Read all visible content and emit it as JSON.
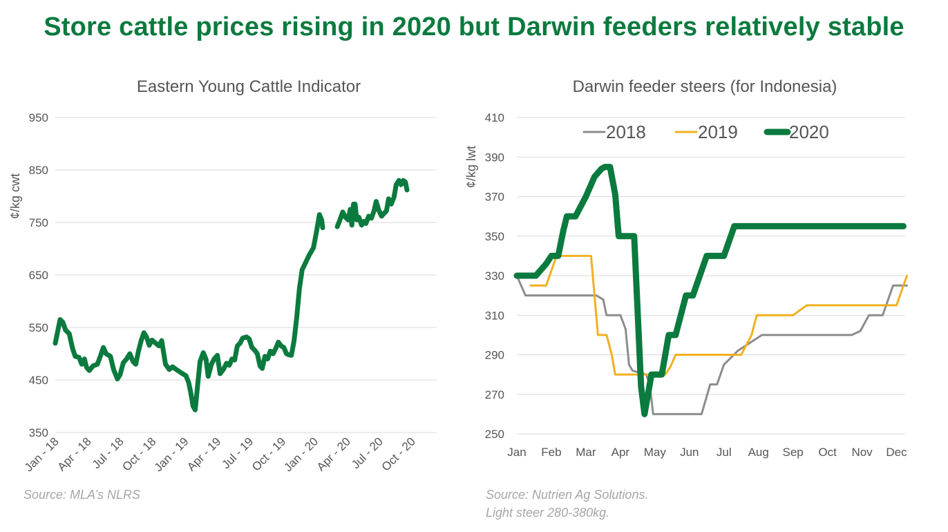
{
  "title": "Store cattle prices rising in 2020 but Darwin feeders relatively stable",
  "chart_data": [
    {
      "type": "line",
      "title": "Eastern Young Cattle Indicator",
      "ylabel": "¢/kg cwt",
      "ylim": [
        350,
        950
      ],
      "yticks": [
        "350",
        "450",
        "550",
        "650",
        "750",
        "850",
        "950"
      ],
      "xticks": [
        "Jan - 18",
        "Apr - 18",
        "Jul - 18",
        "Oct - 18",
        "Jan - 19",
        "Apr - 19",
        "Jul - 19",
        "Oct - 19",
        "Jan - 20",
        "Apr - 20",
        "Jul - 20",
        "Oct - 20"
      ],
      "xlim": [
        0,
        35.3
      ],
      "color": "#0b7a3e",
      "source": "Source: MLA’s NLRS",
      "series": [
        {
          "segments": [
            [
              [
                0,
                520
              ],
              [
                0.2,
                540
              ],
              [
                0.45,
                565
              ],
              [
                0.7,
                560
              ],
              [
                0.95,
                545
              ],
              [
                1.3,
                538
              ],
              [
                1.6,
                510
              ],
              [
                1.85,
                495
              ],
              [
                2.2,
                493
              ],
              [
                2.45,
                480
              ],
              [
                2.7,
                490
              ],
              [
                2.9,
                474
              ],
              [
                3.15,
                468
              ],
              [
                3.5,
                477
              ],
              [
                3.9,
                480
              ],
              [
                4.2,
                497
              ],
              [
                4.45,
                512
              ],
              [
                4.7,
                500
              ],
              [
                5.1,
                495
              ],
              [
                5.4,
                470
              ],
              [
                5.75,
                452
              ],
              [
                6.0,
                460
              ],
              [
                6.3,
                483
              ],
              [
                6.6,
                490
              ],
              [
                6.9,
                500
              ],
              [
                7.2,
                485
              ],
              [
                7.45,
                480
              ],
              [
                7.7,
                505
              ],
              [
                7.95,
                525
              ],
              [
                8.2,
                540
              ],
              [
                8.45,
                532
              ],
              [
                8.7,
                516
              ],
              [
                8.95,
                526
              ],
              [
                9.3,
                520
              ],
              [
                9.6,
                515
              ],
              [
                9.85,
                525
              ],
              [
                10.2,
                480
              ],
              [
                10.55,
                470
              ],
              [
                10.85,
                475
              ],
              [
                11.2,
                470
              ],
              [
                11.7,
                463
              ],
              [
                12.1,
                458
              ],
              [
                12.35,
                445
              ],
              [
                12.55,
                425
              ],
              [
                12.75,
                400
              ],
              [
                12.95,
                393
              ],
              [
                13.2,
                445
              ],
              [
                13.4,
                485
              ],
              [
                13.7,
                502
              ],
              [
                13.95,
                490
              ],
              [
                14.15,
                457
              ],
              [
                14.45,
                480
              ],
              [
                14.7,
                490
              ],
              [
                15.0,
                497
              ],
              [
                15.25,
                462
              ],
              [
                15.55,
                470
              ],
              [
                15.85,
                482
              ],
              [
                16.1,
                478
              ],
              [
                16.35,
                490
              ],
              [
                16.6,
                488
              ],
              [
                16.85,
                515
              ],
              [
                17.1,
                520
              ],
              [
                17.35,
                530
              ],
              [
                17.7,
                532
              ],
              [
                17.95,
                528
              ],
              [
                18.2,
                512
              ],
              [
                18.45,
                507
              ],
              [
                18.7,
                500
              ],
              [
                18.95,
                477
              ],
              [
                19.15,
                472
              ],
              [
                19.4,
                495
              ],
              [
                19.65,
                490
              ],
              [
                19.9,
                505
              ],
              [
                20.15,
                500
              ],
              [
                20.4,
                510
              ],
              [
                20.65,
                522
              ],
              [
                20.9,
                515
              ],
              [
                21.15,
                512
              ],
              [
                21.4,
                500
              ],
              [
                21.6,
                498
              ],
              [
                21.85,
                497
              ],
              [
                22.1,
                525
              ],
              [
                22.35,
                570
              ],
              [
                22.6,
                625
              ],
              [
                22.85,
                660
              ],
              [
                23.2,
                675
              ],
              [
                23.5,
                688
              ],
              [
                23.9,
                702
              ],
              [
                24.2,
                735
              ],
              [
                24.45,
                765
              ],
              [
                24.65,
                755
              ],
              [
                24.75,
                740
              ]
            ],
            [
              [
                26.1,
                742
              ],
              [
                26.35,
                755
              ],
              [
                26.6,
                770
              ],
              [
                26.85,
                760
              ],
              [
                27.1,
                755
              ],
              [
                27.3,
                775
              ],
              [
                27.45,
                745
              ],
              [
                27.6,
                785
              ],
              [
                27.75,
                785
              ],
              [
                27.9,
                755
              ],
              [
                28.1,
                760
              ],
              [
                28.35,
                745
              ],
              [
                28.55,
                752
              ],
              [
                28.75,
                748
              ],
              [
                29.0,
                762
              ],
              [
                29.25,
                758
              ],
              [
                29.5,
                772
              ],
              [
                29.7,
                790
              ],
              [
                29.95,
                773
              ],
              [
                30.2,
                762
              ],
              [
                30.45,
                768
              ],
              [
                30.65,
                772
              ],
              [
                30.85,
                795
              ],
              [
                31.1,
                785
              ],
              [
                31.35,
                798
              ],
              [
                31.55,
                822
              ],
              [
                31.8,
                830
              ],
              [
                32.0,
                822
              ],
              [
                32.2,
                830
              ],
              [
                32.4,
                827
              ],
              [
                32.55,
                812
              ]
            ]
          ]
        }
      ]
    },
    {
      "type": "line",
      "title": "Darwin feeder steers (for Indonesia)",
      "ylabel": "¢/kg lwt",
      "ylim": [
        250,
        410
      ],
      "yticks": [
        "250",
        "270",
        "290",
        "310",
        "330",
        "350",
        "370",
        "390",
        "410"
      ],
      "categories": [
        "Jan",
        "Feb",
        "Mar",
        "Apr",
        "May",
        "Jun",
        "Jul",
        "Aug",
        "Sep",
        "Oct",
        "Nov",
        "Dec"
      ],
      "legend_position": "top",
      "source": "Source: Nutrien Ag Solutions.",
      "source_note": "Light steer 280-380kg.",
      "series": [
        {
          "name": "2018",
          "color": "#8c8c8c",
          "width": 3,
          "points": [
            [
              0,
              330
            ],
            [
              0.25,
              320
            ],
            [
              1.5,
              320
            ],
            [
              2.3,
              320
            ],
            [
              2.5,
              318
            ],
            [
              2.6,
              310
            ],
            [
              3.0,
              310
            ],
            [
              3.15,
              303
            ],
            [
              3.25,
              285
            ],
            [
              3.35,
              282
            ],
            [
              3.75,
              280
            ],
            [
              3.85,
              275
            ],
            [
              3.95,
              260
            ],
            [
              4.8,
              260
            ],
            [
              5.35,
              260
            ],
            [
              5.6,
              275
            ],
            [
              5.8,
              275
            ],
            [
              6.0,
              285
            ],
            [
              6.4,
              292
            ],
            [
              7.1,
              300
            ],
            [
              8.2,
              300
            ],
            [
              9.7,
              300
            ],
            [
              9.95,
              302
            ],
            [
              10.2,
              310
            ],
            [
              10.6,
              310
            ],
            [
              10.9,
              325
            ],
            [
              11.3,
              325
            ]
          ]
        },
        {
          "name": "2019",
          "color": "#f2b01e",
          "width": 3,
          "points": [
            [
              0.4,
              325
            ],
            [
              0.85,
              325
            ],
            [
              1.15,
              340
            ],
            [
              2.15,
              340
            ],
            [
              2.35,
              300
            ],
            [
              2.6,
              300
            ],
            [
              2.75,
              290
            ],
            [
              2.85,
              280
            ],
            [
              4.3,
              280
            ],
            [
              4.45,
              284
            ],
            [
              4.6,
              290
            ],
            [
              6.5,
              290
            ],
            [
              6.8,
              300
            ],
            [
              6.95,
              310
            ],
            [
              8.0,
              310
            ],
            [
              8.4,
              315
            ],
            [
              10.0,
              315
            ],
            [
              11.0,
              315
            ],
            [
              11.3,
              330
            ]
          ]
        },
        {
          "name": "2020",
          "color": "#0b7a3e",
          "width": 9,
          "points": [
            [
              0,
              330
            ],
            [
              0.55,
              330
            ],
            [
              0.85,
              336
            ],
            [
              1.0,
              340
            ],
            [
              1.2,
              340
            ],
            [
              1.35,
              353
            ],
            [
              1.45,
              360
            ],
            [
              1.7,
              360
            ],
            [
              2.0,
              370
            ],
            [
              2.25,
              380
            ],
            [
              2.45,
              384
            ],
            [
              2.55,
              385
            ],
            [
              2.7,
              385
            ],
            [
              2.85,
              371
            ],
            [
              2.95,
              350
            ],
            [
              3.2,
              350
            ],
            [
              3.4,
              350
            ],
            [
              3.5,
              312
            ],
            [
              3.6,
              274
            ],
            [
              3.7,
              260
            ],
            [
              3.8,
              270
            ],
            [
              3.9,
              280
            ],
            [
              4.2,
              280
            ],
            [
              4.4,
              300
            ],
            [
              4.6,
              300
            ],
            [
              4.9,
              320
            ],
            [
              5.1,
              320
            ],
            [
              5.3,
              330
            ],
            [
              5.5,
              340
            ],
            [
              5.9,
              340
            ],
            [
              6.0,
              340
            ],
            [
              6.2,
              350
            ],
            [
              6.3,
              355
            ],
            [
              11.0,
              355
            ],
            [
              11.2,
              355
            ]
          ]
        }
      ]
    }
  ]
}
